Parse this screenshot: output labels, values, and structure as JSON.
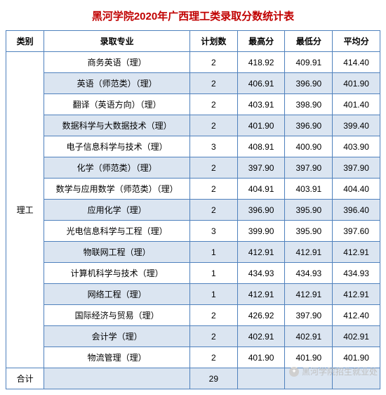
{
  "title": {
    "text": "黑河学院2020年广西理工类录取分数统计表",
    "color": "#c00000"
  },
  "table": {
    "border_color": "#4f81bd",
    "alt_row_bg": "#dbe5f1",
    "row_bg": "#ffffff",
    "text_color": "#000000",
    "headers": {
      "category": "类别",
      "major": "录取专业",
      "plan": "计划数",
      "max": "最高分",
      "min": "最低分",
      "avg": "平均分"
    },
    "category_label": "理工",
    "rows": [
      {
        "major": "商务英语（理）",
        "plan": "2",
        "max": "418.92",
        "min": "409.91",
        "avg": "414.40"
      },
      {
        "major": "英语（师范类）（理）",
        "plan": "2",
        "max": "406.91",
        "min": "396.90",
        "avg": "401.90"
      },
      {
        "major": "翻译（英语方向）（理）",
        "plan": "2",
        "max": "403.91",
        "min": "398.90",
        "avg": "401.40"
      },
      {
        "major": "数据科学与大数据技术（理）",
        "plan": "2",
        "max": "401.90",
        "min": "396.90",
        "avg": "399.40"
      },
      {
        "major": "电子信息科学与技术（理）",
        "plan": "3",
        "max": "408.91",
        "min": "400.90",
        "avg": "403.90"
      },
      {
        "major": "化学（师范类）（理）",
        "plan": "2",
        "max": "397.90",
        "min": "397.90",
        "avg": "397.90"
      },
      {
        "major": "数学与应用数学（师范类）（理）",
        "plan": "2",
        "max": "404.91",
        "min": "403.91",
        "avg": "404.40"
      },
      {
        "major": "应用化学（理）",
        "plan": "2",
        "max": "396.90",
        "min": "395.90",
        "avg": "396.40"
      },
      {
        "major": "光电信息科学与工程（理）",
        "plan": "3",
        "max": "399.90",
        "min": "395.90",
        "avg": "397.60"
      },
      {
        "major": "物联网工程（理）",
        "plan": "1",
        "max": "412.91",
        "min": "412.91",
        "avg": "412.91"
      },
      {
        "major": "计算机科学与技术（理）",
        "plan": "1",
        "max": "434.93",
        "min": "434.93",
        "avg": "434.93"
      },
      {
        "major": "网络工程（理）",
        "plan": "1",
        "max": "412.91",
        "min": "412.91",
        "avg": "412.91"
      },
      {
        "major": "国际经济与贸易（理）",
        "plan": "2",
        "max": "426.92",
        "min": "397.90",
        "avg": "412.40"
      },
      {
        "major": "会计学（理）",
        "plan": "2",
        "max": "402.91",
        "min": "402.91",
        "avg": "402.91"
      },
      {
        "major": "物流管理（理）",
        "plan": "2",
        "max": "401.90",
        "min": "401.90",
        "avg": "401.90"
      }
    ],
    "total": {
      "label": "合计",
      "plan": "29"
    }
  },
  "watermark": {
    "text": "黑河学院招生就业处"
  }
}
